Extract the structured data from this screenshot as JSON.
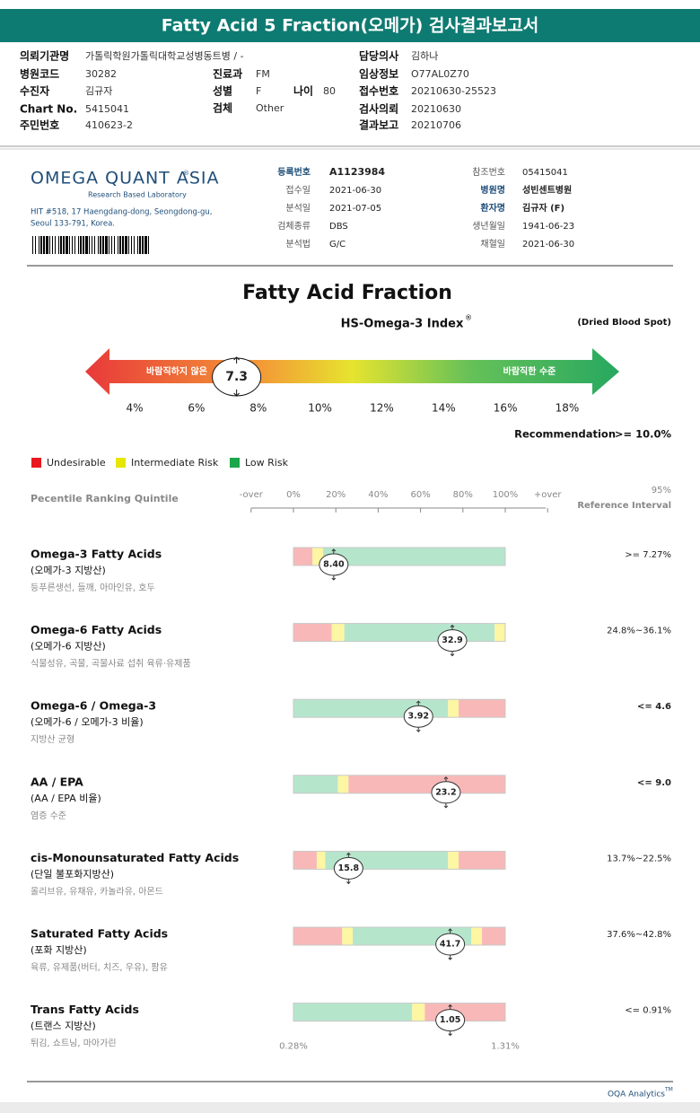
{
  "header": {
    "title": "Fatty Acid 5 Fraction(오메가) 검사결과보고서"
  },
  "patient_info": {
    "institution": {
      "label": "의뢰기관명",
      "value": "가톨릭학원가톨릭대학교성병동트병 / -"
    },
    "doctor": {
      "label": "담당의사",
      "value": "김하나"
    },
    "hospital_code": {
      "label": "병원코드",
      "value": "30282"
    },
    "department": {
      "label": "진료과",
      "value": "FM"
    },
    "clinical_info": {
      "label": "임상정보",
      "value": "O77AL0Z70"
    },
    "patient": {
      "label": "수진자",
      "value": "김규자"
    },
    "sex": {
      "label": "성별",
      "value": "F"
    },
    "age": {
      "label": "나이",
      "value": "80"
    },
    "receipt_no": {
      "label": "접수번호",
      "value": "20210630-25523"
    },
    "chart_no": {
      "label": "Chart No.",
      "value": "5415041"
    },
    "specimen": {
      "label": "검체",
      "value": "Other"
    },
    "request_date": {
      "label": "검사의뢰",
      "value": "20210630"
    },
    "id_no": {
      "label": "주민번호",
      "value": "410623-2"
    },
    "report_date": {
      "label": "결과보고",
      "value": "20210706"
    }
  },
  "lab": {
    "logo": "OMEGA QUANT ASIA",
    "logo_mark": "®",
    "tagline": "Research Based Laboratory",
    "address": [
      "HIT #518, 17 Haengdang-dong, Seongdong-gu,",
      "Seoul 133-791, Korea."
    ],
    "left_fields": [
      {
        "label": "등록번호",
        "value": "A1123984"
      },
      {
        "label": "접수일",
        "value": "2021-06-30"
      },
      {
        "label": "분석일",
        "value": "2021-07-05"
      },
      {
        "label": "검체종류",
        "value": "DBS"
      },
      {
        "label": "분석법",
        "value": "G/C"
      }
    ],
    "right_fields": [
      {
        "label": "참조번호",
        "value": "05415041"
      },
      {
        "label": "병원명",
        "value": "성빈센트병원"
      },
      {
        "label": "환자명",
        "value": "김규자 (F)"
      },
      {
        "label": "생년월일",
        "value": "1941-06-23"
      },
      {
        "label": "채혈일",
        "value": "2021-06-30"
      }
    ]
  },
  "report": {
    "title": "Fatty Acid Fraction",
    "index_title": "HS-Omega-3 Index",
    "index_mark": "®",
    "sample": "(Dried Blood Spot)",
    "gauge": {
      "left_label": "바람직하지 않은",
      "right_label": "바람직한 수준",
      "value": 7.3,
      "ticks": [
        {
          "value": 4,
          "label": "4%"
        },
        {
          "value": 6,
          "label": "6%"
        },
        {
          "value": 8,
          "label": "8%"
        },
        {
          "value": 10,
          "label": "10%"
        },
        {
          "value": 12,
          "label": "12%"
        },
        {
          "value": 14,
          "label": "14%"
        },
        {
          "value": 16,
          "label": "16%"
        },
        {
          "value": 18,
          "label": "18%"
        }
      ]
    },
    "recommendation": {
      "label": "Recommendation",
      "value": ">= 10.0%"
    },
    "legend": [
      {
        "name": "Undesirable",
        "color": "#e8191f"
      },
      {
        "name": "Intermediate Risk",
        "color": "#e6e600"
      },
      {
        "name": "Low Risk",
        "color": "#1aa64a"
      }
    ],
    "percentile": {
      "title": "Pecentile Ranking Quintile",
      "ref_title": [
        "95%",
        "Reference Interval"
      ],
      "ticks": [
        {
          "value": -20,
          "label": "-over"
        },
        {
          "value": 0,
          "label": "0%"
        },
        {
          "value": 20,
          "label": "20%"
        },
        {
          "value": 40,
          "label": "40%"
        },
        {
          "value": 60,
          "label": "60%"
        },
        {
          "value": 80,
          "label": "80%"
        },
        {
          "value": 100,
          "label": "100%"
        },
        {
          "value": 120,
          "label": "+over"
        }
      ]
    },
    "rows": [
      {
        "name": "Omega-3 Fatty Acids",
        "korean": "(오메가-3 지방산)",
        "foods": "등푸른생선, 들깨, 아마인유, 호두",
        "value": "8.40",
        "percentile": 19,
        "reference": ">= 7.27%",
        "zones": [
          {
            "from": 0,
            "to": 9,
            "color": "#f9b8b8"
          },
          {
            "from": 9,
            "to": 14,
            "color": "#fdf6a3"
          },
          {
            "from": 14,
            "to": 100,
            "color": "#b5e6cc"
          }
        ]
      },
      {
        "name": "Omega-6 Fatty Acids",
        "korean": "(오메가-6 지방산)",
        "foods": "식물성유, 곡물, 곡물사료 섭취 육류·유제품",
        "value": "32.9",
        "percentile": 75,
        "reference": "24.8%~36.1%",
        "zones": [
          {
            "from": 0,
            "to": 18,
            "color": "#f9b8b8"
          },
          {
            "from": 18,
            "to": 24,
            "color": "#fdf6a3"
          },
          {
            "from": 24,
            "to": 95,
            "color": "#b5e6cc"
          },
          {
            "from": 95,
            "to": 100,
            "color": "#fdf6a3"
          }
        ]
      },
      {
        "name": "Omega-6 / Omega-3",
        "korean": "(오메가-6 / 오메가-3 비율)",
        "foods": "지방산 균형",
        "value": "3.92",
        "percentile": 59,
        "reference": "<= 4.6",
        "zones": [
          {
            "from": 0,
            "to": 73,
            "color": "#b5e6cc"
          },
          {
            "from": 73,
            "to": 78,
            "color": "#fdf6a3"
          },
          {
            "from": 78,
            "to": 100,
            "color": "#f9b8b8"
          }
        ]
      },
      {
        "name": "AA / EPA",
        "korean": "(AA / EPA 비율)",
        "foods": "염증 수준",
        "value": "23.2",
        "percentile": 72,
        "reference": "<= 9.0",
        "zones": [
          {
            "from": 0,
            "to": 21,
            "color": "#b5e6cc"
          },
          {
            "from": 21,
            "to": 26,
            "color": "#fdf6a3"
          },
          {
            "from": 26,
            "to": 100,
            "color": "#f9b8b8"
          }
        ]
      },
      {
        "name": "cis-Monounsaturated Fatty Acids",
        "korean": "(단일 불포화지방산)",
        "foods": "올리브유, 유채유, 카놀라유, 아몬드",
        "value": "15.8",
        "percentile": 26,
        "reference": "13.7%~22.5%",
        "zones": [
          {
            "from": 0,
            "to": 11,
            "color": "#f9b8b8"
          },
          {
            "from": 11,
            "to": 15,
            "color": "#fdf6a3"
          },
          {
            "from": 15,
            "to": 73,
            "color": "#b5e6cc"
          },
          {
            "from": 73,
            "to": 78,
            "color": "#fdf6a3"
          },
          {
            "from": 78,
            "to": 100,
            "color": "#f9b8b8"
          }
        ]
      },
      {
        "name": "Saturated Fatty Acids",
        "korean": "(포화 지방산)",
        "foods": "육류, 유제품(버터, 치즈, 우유), 팜유",
        "value": "41.7",
        "percentile": 74,
        "reference": "37.6%~42.8%",
        "zones": [
          {
            "from": 0,
            "to": 23,
            "color": "#f9b8b8"
          },
          {
            "from": 23,
            "to": 28,
            "color": "#fdf6a3"
          },
          {
            "from": 28,
            "to": 84,
            "color": "#b5e6cc"
          },
          {
            "from": 84,
            "to": 89,
            "color": "#fdf6a3"
          },
          {
            "from": 89,
            "to": 100,
            "color": "#f9b8b8"
          }
        ]
      },
      {
        "name": "Trans Fatty Acids",
        "korean": "(트랜스 지방산)",
        "foods": "튀김, 쇼트닝, 마아가린",
        "value": "1.05",
        "percentile": 74,
        "reference": "<= 0.91%",
        "scale_labels": [
          "0.28%",
          "1.31%"
        ],
        "zones": [
          {
            "from": 0,
            "to": 56,
            "color": "#b5e6cc"
          },
          {
            "from": 56,
            "to": 62,
            "color": "#fdf6a3"
          },
          {
            "from": 62,
            "to": 100,
            "color": "#f9b8b8"
          }
        ]
      }
    ]
  },
  "footer": {
    "brand": "OQA Analytics",
    "mark": "TM"
  }
}
